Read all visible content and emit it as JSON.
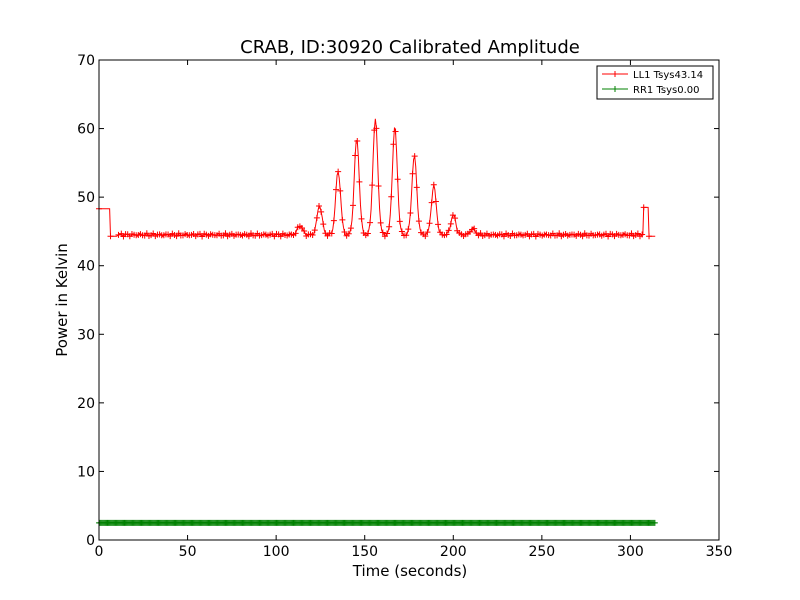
{
  "chart_data": {
    "type": "line",
    "title": "CRAB, ID:30920 Calibrated Amplitude",
    "xlabel": "Time (seconds)",
    "ylabel": "Power in Kelvin",
    "xlim": [
      0,
      350
    ],
    "ylim": [
      0,
      70
    ],
    "x_ticks": [
      "0",
      "50",
      "100",
      "150",
      "200",
      "250",
      "300",
      "350"
    ],
    "y_ticks": [
      "0",
      "10",
      "20",
      "30",
      "40",
      "50",
      "60",
      "70"
    ],
    "grid": false,
    "legend_position": "top-right",
    "marker": "plus",
    "series": [
      {
        "name": "LL1 Tsys43.14",
        "color": "#ff0000",
        "baseline": 44.5,
        "t_start": 0,
        "t_end": 314,
        "step_points": [
          [
            0,
            48.3
          ],
          [
            6,
            48.3
          ],
          [
            6.5,
            44.3
          ],
          [
            10,
            44.3
          ],
          [
            11,
            44.5
          ]
        ],
        "end_step_points": [
          [
            307,
            44.5
          ],
          [
            307.5,
            48.5
          ],
          [
            310,
            48.5
          ],
          [
            310.5,
            44.3
          ],
          [
            314,
            44.3
          ]
        ],
        "peaks": [
          {
            "x": 113.5,
            "y": 45.9
          },
          {
            "x": 124.5,
            "y": 48.8
          },
          {
            "x": 135,
            "y": 53.8
          },
          {
            "x": 145.5,
            "y": 58.5
          },
          {
            "x": 156,
            "y": 61.3
          },
          {
            "x": 167,
            "y": 60.1
          },
          {
            "x": 178,
            "y": 56.0
          },
          {
            "x": 189,
            "y": 51.6
          },
          {
            "x": 200,
            "y": 47.4
          },
          {
            "x": 211,
            "y": 45.4
          }
        ]
      },
      {
        "name": "RR1 Tsys0.00",
        "color": "#008000",
        "constant": 2.5,
        "t_start": 0,
        "t_end": 314
      }
    ]
  }
}
